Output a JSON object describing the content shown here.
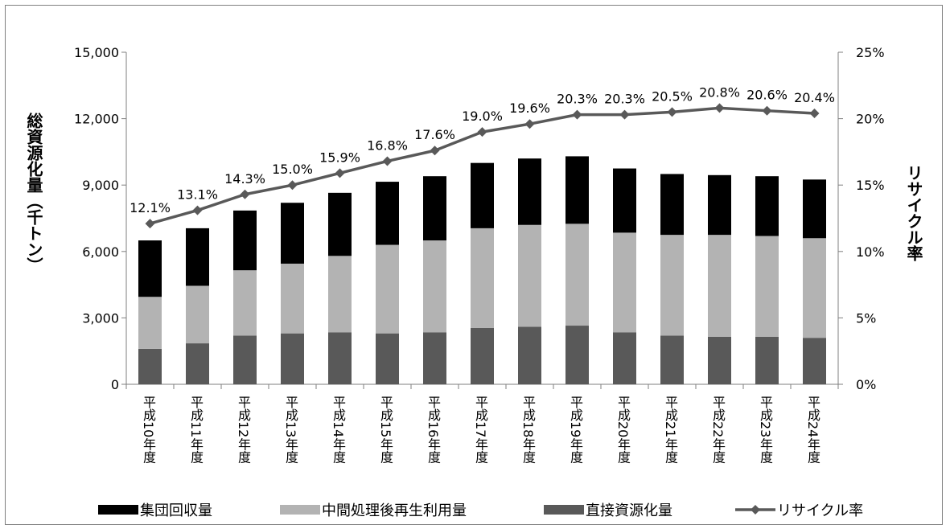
{
  "chart_data": {
    "type": "bar",
    "stacked": true,
    "categories": [
      "平成10年度",
      "平成11年度",
      "平成12年度",
      "平成13年度",
      "平成14年度",
      "平成15年度",
      "平成16年度",
      "平成17年度",
      "平成18年度",
      "平成19年度",
      "平成20年度",
      "平成21年度",
      "平成22年度",
      "平成23年度",
      "平成24年度"
    ],
    "series": [
      {
        "name": "直接資源化量",
        "color": "#595959",
        "values": [
          1600,
          1850,
          2200,
          2300,
          2350,
          2300,
          2350,
          2550,
          2600,
          2650,
          2350,
          2200,
          2150,
          2150,
          2100
        ]
      },
      {
        "name": "中間処理後再生利用量",
        "color": "#b3b3b3",
        "values": [
          2350,
          2600,
          2950,
          3150,
          3450,
          4000,
          4150,
          4500,
          4600,
          4600,
          4500,
          4550,
          4600,
          4550,
          4500
        ]
      },
      {
        "name": "集団回収量",
        "color": "#000000",
        "values": [
          2550,
          2600,
          2700,
          2750,
          2850,
          2850,
          2900,
          2950,
          3000,
          3050,
          2900,
          2750,
          2700,
          2700,
          2650
        ]
      }
    ],
    "line": {
      "name": "リサイクル率",
      "color": "#595959",
      "values": [
        12.1,
        13.1,
        14.3,
        15.0,
        15.9,
        16.8,
        17.6,
        19.0,
        19.6,
        20.3,
        20.3,
        20.5,
        20.8,
        20.6,
        20.4
      ],
      "labels": [
        "12.1%",
        "13.1%",
        "14.3%",
        "15.0%",
        "15.9%",
        "16.8%",
        "17.6%",
        "19.0%",
        "19.6%",
        "20.3%",
        "20.3%",
        "20.5%",
        "20.8%",
        "20.6%",
        "20.4%"
      ]
    },
    "ylabel": "総資源化量（千トン）",
    "y2label": "リサイクル率",
    "ylim": [
      0,
      15000
    ],
    "y2lim": [
      0,
      25
    ],
    "yticks": [
      "0",
      "3,000",
      "6,000",
      "9,000",
      "12,000",
      "15,000"
    ],
    "y2ticks": [
      "0%",
      "5%",
      "10%",
      "15%",
      "20%",
      "25%"
    ],
    "legend_position": "bottom",
    "legend": [
      "集団回収量",
      "中間処理後再生利用量",
      "直接資源化量",
      "リサイクル率"
    ]
  }
}
